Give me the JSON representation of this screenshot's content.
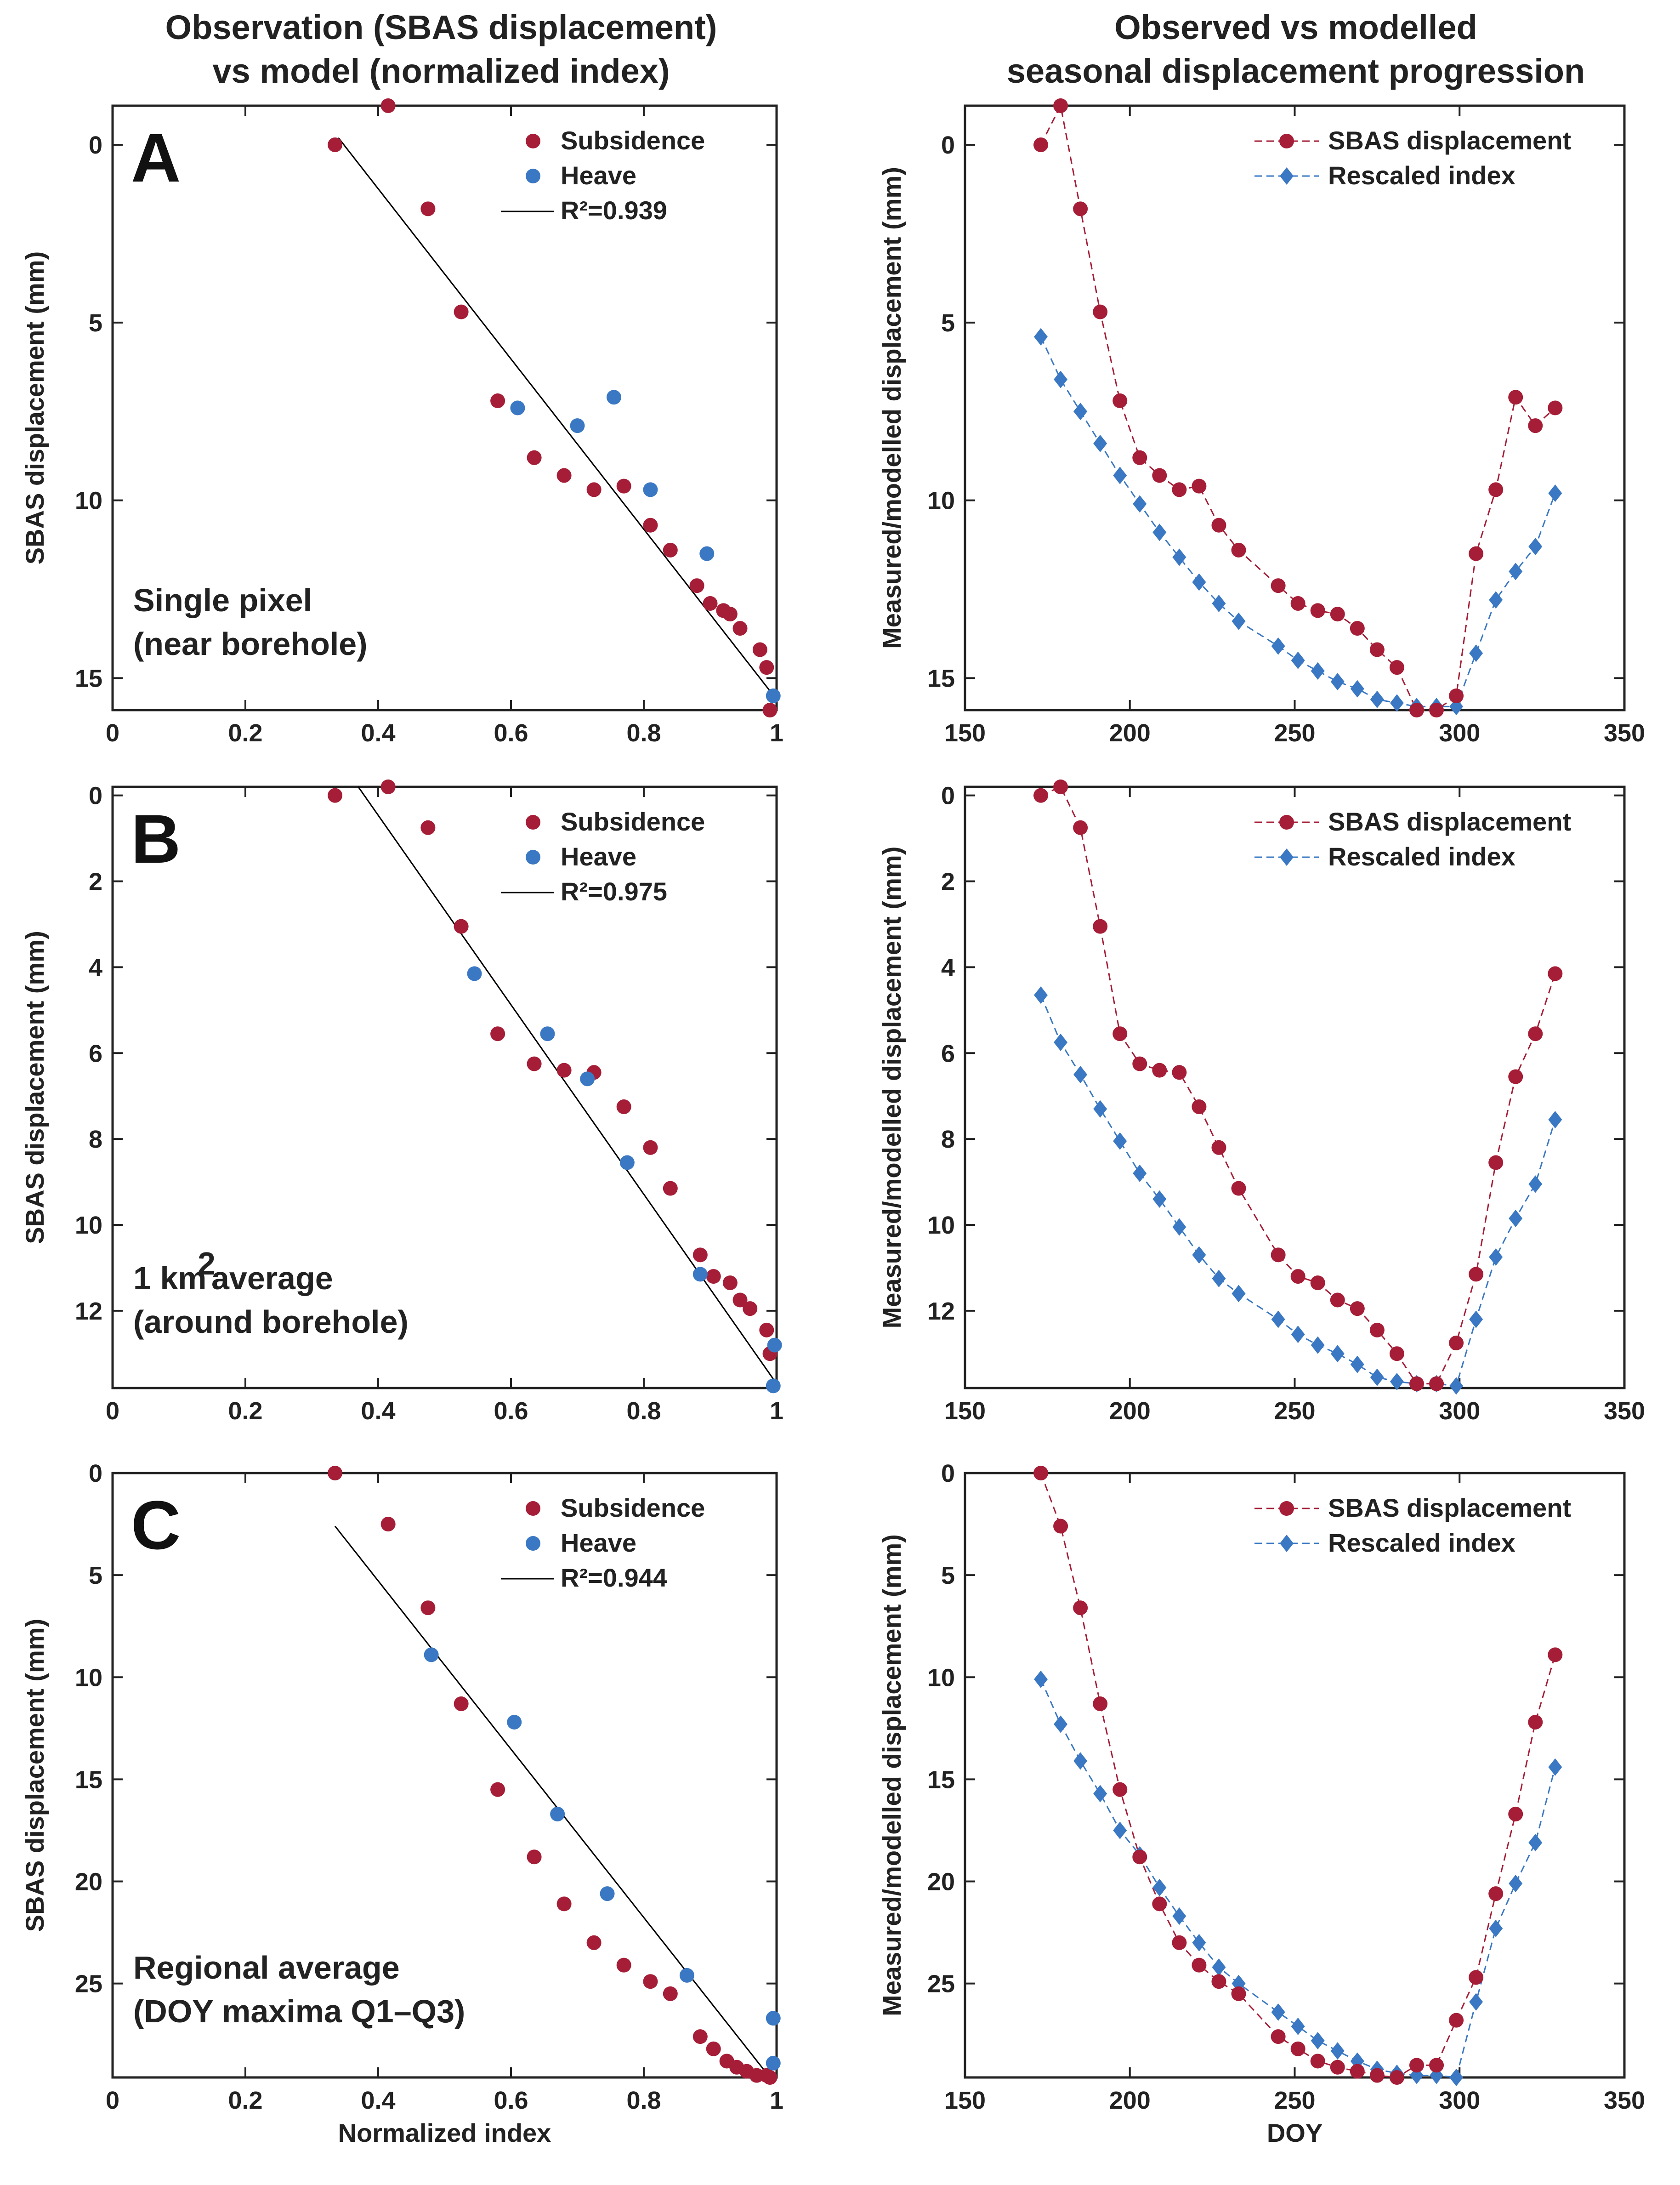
{
  "headers": {
    "left_line1": "Observation (SBAS displacement)",
    "left_line2": "vs model (normalized index)",
    "right_line1": "Observed vs modelled",
    "right_line2": "seasonal displacement progression"
  },
  "colors": {
    "subsidence": "#a51d36",
    "heave": "#3a78c3",
    "fit_line": "#000000",
    "axis": "#222222"
  },
  "chart_data": [
    {
      "id": "A-scatter",
      "type": "scatter",
      "panel_letter": "A",
      "caption_line1": "Single pixel",
      "caption_line2": "(near borehole)",
      "xlabel": "",
      "ylabel": "SBAS displacement (mm)",
      "xlim": [
        0,
        1
      ],
      "ylim": [
        -1.1,
        15.9
      ],
      "y_reversed": true,
      "xticks": [
        0,
        0.2,
        0.4,
        0.6,
        0.8,
        1
      ],
      "xtick_labels": [
        "0",
        "0.2",
        "0.4",
        "0.6",
        "0.8",
        "1"
      ],
      "yticks": [
        0,
        5,
        10,
        15
      ],
      "ytick_labels": [
        "0",
        "5",
        "10",
        "15"
      ],
      "legend": {
        "subsidence": "Subsidence",
        "heave": "Heave",
        "fit": "R²=0.939"
      },
      "fit_line": [
        [
          0.34,
          -0.2
        ],
        [
          1.0,
          15.6
        ]
      ],
      "subsidence": [
        [
          0.335,
          0
        ],
        [
          0.415,
          -1.1
        ],
        [
          0.475,
          1.8
        ],
        [
          0.525,
          4.7
        ],
        [
          0.58,
          7.2
        ],
        [
          0.635,
          8.8
        ],
        [
          0.68,
          9.3
        ],
        [
          0.725,
          9.7
        ],
        [
          0.77,
          9.6
        ],
        [
          0.81,
          10.7
        ],
        [
          0.84,
          11.4
        ],
        [
          0.88,
          12.4
        ],
        [
          0.9,
          12.9
        ],
        [
          0.92,
          13.1
        ],
        [
          0.93,
          13.2
        ],
        [
          0.945,
          13.6
        ],
        [
          0.975,
          14.2
        ],
        [
          0.985,
          14.7
        ],
        [
          0.99,
          15.9
        ]
      ],
      "heave": [
        [
          0.61,
          7.4
        ],
        [
          0.7,
          7.9
        ],
        [
          0.755,
          7.1
        ],
        [
          0.81,
          9.7
        ],
        [
          0.895,
          11.5
        ],
        [
          0.995,
          15.5
        ]
      ]
    },
    {
      "id": "A-series",
      "type": "line",
      "panel_letter": "A",
      "xlabel": "",
      "ylabel": "Measured/modelled displacement (mm)",
      "xlim": [
        150,
        350
      ],
      "ylim": [
        -1.1,
        15.9
      ],
      "y_reversed": true,
      "xticks": [
        150,
        200,
        250,
        300,
        350
      ],
      "xtick_labels": [
        "150",
        "200",
        "250",
        "300",
        "350"
      ],
      "yticks": [
        0,
        5,
        10,
        15
      ],
      "ytick_labels": [
        "0",
        "5",
        "10",
        "15"
      ],
      "legend": {
        "observed": "SBAS displacement",
        "model": "Rescaled index"
      },
      "series": [
        {
          "name": "SBAS displacement",
          "x": [
            173,
            179,
            185,
            191,
            197,
            203,
            209,
            215,
            221,
            227,
            233,
            245,
            251,
            257,
            263,
            269,
            275,
            281,
            287,
            293,
            299,
            305,
            311,
            317,
            323,
            329
          ],
          "y": [
            0,
            -1.1,
            1.8,
            4.7,
            7.2,
            8.8,
            9.3,
            9.7,
            9.6,
            10.7,
            11.4,
            12.4,
            12.9,
            13.1,
            13.2,
            13.6,
            14.2,
            14.7,
            15.9,
            15.9,
            15.5,
            11.5,
            9.7,
            7.1,
            7.9,
            7.4
          ]
        },
        {
          "name": "Rescaled index",
          "x": [
            173,
            179,
            185,
            191,
            197,
            203,
            209,
            215,
            221,
            227,
            233,
            245,
            251,
            257,
            263,
            269,
            275,
            281,
            287,
            293,
            299,
            305,
            311,
            317,
            323,
            329
          ],
          "y": [
            5.4,
            6.6,
            7.5,
            8.4,
            9.3,
            10.1,
            10.9,
            11.6,
            12.3,
            12.9,
            13.4,
            14.1,
            14.5,
            14.8,
            15.1,
            15.3,
            15.6,
            15.7,
            15.8,
            15.8,
            15.8,
            14.3,
            12.8,
            12.0,
            11.3,
            9.8
          ]
        }
      ]
    },
    {
      "id": "B-scatter",
      "type": "scatter",
      "panel_letter": "B",
      "caption_line1": "1 km",
      "caption_sup": "2",
      "caption_line1_tail": " average",
      "caption_line2": "(around borehole)",
      "xlabel": "",
      "ylabel": "SBAS displacement (mm)",
      "xlim": [
        0,
        1
      ],
      "ylim": [
        -0.2,
        13.8
      ],
      "y_reversed": true,
      "xticks": [
        0,
        0.2,
        0.4,
        0.6,
        0.8,
        1
      ],
      "xtick_labels": [
        "0",
        "0.2",
        "0.4",
        "0.6",
        "0.8",
        "1"
      ],
      "yticks": [
        0,
        2,
        4,
        6,
        8,
        10,
        12
      ],
      "ytick_labels": [
        "0",
        "2",
        "4",
        "6",
        "8",
        "10",
        "12"
      ],
      "legend": {
        "subsidence": "Subsidence",
        "heave": "Heave",
        "fit": "R²=0.975"
      },
      "fit_line": [
        [
          0.37,
          -0.2
        ],
        [
          1.0,
          13.7
        ]
      ],
      "subsidence": [
        [
          0.335,
          0
        ],
        [
          0.415,
          -0.2
        ],
        [
          0.475,
          0.75
        ],
        [
          0.525,
          3.05
        ],
        [
          0.58,
          5.55
        ],
        [
          0.635,
          6.25
        ],
        [
          0.68,
          6.4
        ],
        [
          0.725,
          6.45
        ],
        [
          0.77,
          7.25
        ],
        [
          0.81,
          8.2
        ],
        [
          0.84,
          9.15
        ],
        [
          0.885,
          10.7
        ],
        [
          0.905,
          11.2
        ],
        [
          0.93,
          11.35
        ],
        [
          0.945,
          11.75
        ],
        [
          0.96,
          11.95
        ],
        [
          0.985,
          12.45
        ],
        [
          0.99,
          13.0
        ]
      ],
      "heave": [
        [
          0.545,
          4.15
        ],
        [
          0.655,
          5.55
        ],
        [
          0.715,
          6.6
        ],
        [
          0.775,
          8.55
        ],
        [
          0.885,
          11.15
        ],
        [
          0.997,
          12.8
        ],
        [
          0.995,
          13.75
        ]
      ]
    },
    {
      "id": "B-series",
      "type": "line",
      "panel_letter": "B",
      "xlabel": "",
      "ylabel": "Measured/modelled displacement (mm)",
      "xlim": [
        150,
        350
      ],
      "ylim": [
        -0.2,
        13.8
      ],
      "y_reversed": true,
      "xticks": [
        150,
        200,
        250,
        300,
        350
      ],
      "xtick_labels": [
        "150",
        "200",
        "250",
        "300",
        "350"
      ],
      "yticks": [
        0,
        2,
        4,
        6,
        8,
        10,
        12
      ],
      "ytick_labels": [
        "0",
        "2",
        "4",
        "6",
        "8",
        "10",
        "12"
      ],
      "legend": {
        "observed": "SBAS displacement",
        "model": "Rescaled index"
      },
      "series": [
        {
          "name": "SBAS displacement",
          "x": [
            173,
            179,
            185,
            191,
            197,
            203,
            209,
            215,
            221,
            227,
            233,
            245,
            251,
            257,
            263,
            269,
            275,
            281,
            287,
            293,
            299,
            305,
            311,
            317,
            323,
            329
          ],
          "y": [
            0,
            -0.2,
            0.75,
            3.05,
            5.55,
            6.25,
            6.4,
            6.45,
            7.25,
            8.2,
            9.15,
            10.7,
            11.2,
            11.35,
            11.75,
            11.95,
            12.45,
            13.0,
            13.7,
            13.7,
            12.75,
            11.15,
            8.55,
            6.55,
            5.55,
            4.15
          ]
        },
        {
          "name": "Rescaled index",
          "x": [
            173,
            179,
            185,
            191,
            197,
            203,
            209,
            215,
            221,
            227,
            233,
            245,
            251,
            257,
            263,
            269,
            275,
            281,
            287,
            293,
            299,
            305,
            311,
            317,
            323,
            329
          ],
          "y": [
            4.65,
            5.75,
            6.5,
            7.3,
            8.05,
            8.8,
            9.4,
            10.05,
            10.7,
            11.25,
            11.6,
            12.2,
            12.55,
            12.8,
            13.0,
            13.25,
            13.55,
            13.65,
            13.7,
            13.7,
            13.75,
            12.2,
            10.75,
            9.85,
            9.05,
            7.55
          ]
        }
      ]
    },
    {
      "id": "C-scatter",
      "type": "scatter",
      "panel_letter": "C",
      "caption_line1": "Regional average",
      "caption_line2": "(DOY maxima Q1–Q3)",
      "xlabel": "Normalized index",
      "ylabel": "SBAS displacement (mm)",
      "xlim": [
        0,
        1
      ],
      "ylim": [
        0,
        29.6
      ],
      "y_reversed": true,
      "xticks": [
        0,
        0.2,
        0.4,
        0.6,
        0.8,
        1
      ],
      "xtick_labels": [
        "0",
        "0.2",
        "0.4",
        "0.6",
        "0.8",
        "1"
      ],
      "yticks": [
        0,
        5,
        10,
        15,
        20,
        25
      ],
      "ytick_labels": [
        "0",
        "5",
        "10",
        "15",
        "20",
        "25"
      ],
      "legend": {
        "subsidence": "Subsidence",
        "heave": "Heave",
        "fit": "R²=0.944"
      },
      "fit_line": [
        [
          0.335,
          2.6
        ],
        [
          0.99,
          29.6
        ]
      ],
      "subsidence": [
        [
          0.335,
          0
        ],
        [
          0.415,
          2.5
        ],
        [
          0.475,
          6.6
        ],
        [
          0.525,
          11.3
        ],
        [
          0.58,
          15.5
        ],
        [
          0.635,
          18.8
        ],
        [
          0.68,
          21.1
        ],
        [
          0.725,
          23.0
        ],
        [
          0.77,
          24.1
        ],
        [
          0.81,
          24.9
        ],
        [
          0.84,
          25.5
        ],
        [
          0.885,
          27.6
        ],
        [
          0.905,
          28.2
        ],
        [
          0.925,
          28.8
        ],
        [
          0.94,
          29.1
        ],
        [
          0.955,
          29.3
        ],
        [
          0.97,
          29.5
        ],
        [
          0.985,
          29.5
        ],
        [
          0.99,
          29.6
        ]
      ],
      "heave": [
        [
          0.48,
          8.9
        ],
        [
          0.605,
          12.2
        ],
        [
          0.67,
          16.7
        ],
        [
          0.745,
          20.6
        ],
        [
          0.865,
          24.6
        ],
        [
          0.995,
          26.7
        ],
        [
          0.995,
          28.9
        ]
      ]
    },
    {
      "id": "C-series",
      "type": "line",
      "panel_letter": "C",
      "xlabel": "DOY",
      "ylabel": "Measured/modelled displacement (mm)",
      "xlim": [
        150,
        350
      ],
      "ylim": [
        0,
        29.6
      ],
      "y_reversed": true,
      "xticks": [
        150,
        200,
        250,
        300,
        350
      ],
      "xtick_labels": [
        "150",
        "200",
        "250",
        "300",
        "350"
      ],
      "yticks": [
        0,
        5,
        10,
        15,
        20,
        25
      ],
      "ytick_labels": [
        "0",
        "5",
        "10",
        "15",
        "20",
        "25"
      ],
      "legend": {
        "observed": "SBAS displacement",
        "model": "Rescaled index"
      },
      "series": [
        {
          "name": "SBAS displacement",
          "x": [
            173,
            179,
            185,
            191,
            197,
            203,
            209,
            215,
            221,
            227,
            233,
            245,
            251,
            257,
            263,
            269,
            275,
            281,
            287,
            293,
            299,
            305,
            311,
            317,
            323,
            329
          ],
          "y": [
            0,
            2.6,
            6.6,
            11.3,
            15.5,
            18.8,
            21.1,
            23.0,
            24.1,
            24.9,
            25.5,
            27.6,
            28.2,
            28.8,
            29.1,
            29.3,
            29.5,
            29.6,
            29.0,
            29.0,
            26.8,
            24.7,
            20.6,
            16.7,
            12.2,
            8.9
          ]
        },
        {
          "name": "Rescaled index",
          "x": [
            173,
            179,
            185,
            191,
            197,
            203,
            209,
            215,
            221,
            227,
            233,
            245,
            251,
            257,
            263,
            269,
            275,
            281,
            287,
            293,
            299,
            305,
            311,
            317,
            323,
            329
          ],
          "y": [
            10.1,
            12.3,
            14.1,
            15.7,
            17.5,
            18.7,
            20.3,
            21.7,
            23.0,
            24.2,
            25.0,
            26.4,
            27.1,
            27.8,
            28.3,
            28.8,
            29.2,
            29.4,
            29.5,
            29.5,
            29.6,
            25.9,
            22.3,
            20.1,
            18.1,
            14.4
          ]
        }
      ]
    }
  ]
}
